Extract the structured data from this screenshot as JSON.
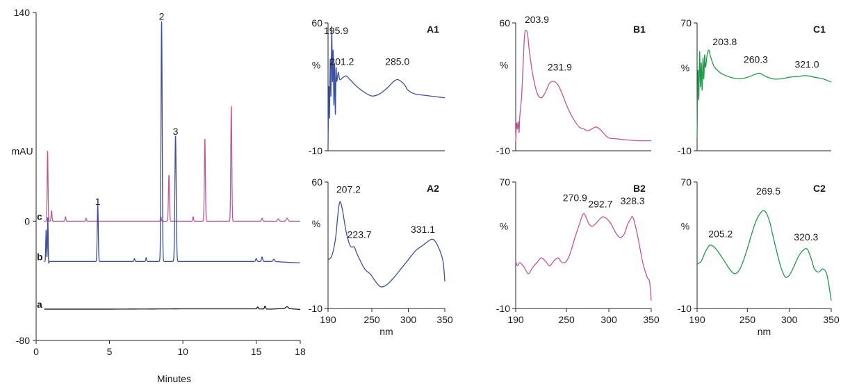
{
  "chart_data": [
    {
      "id": "chromatogram",
      "type": "line",
      "ylabel": "mAU",
      "xlabel": "Minutes",
      "xlim": [
        0,
        18
      ],
      "ylim": [
        -80,
        140
      ],
      "x_ticks": [
        0,
        5,
        10,
        15,
        18
      ],
      "y_ticks": [
        -80,
        0,
        140
      ],
      "series": [
        {
          "name": "c",
          "color": "#c0559c",
          "baseline": 0,
          "points": [
            [
              0.55,
              0
            ],
            [
              0.8,
              0
            ],
            [
              1.05,
              0
            ],
            [
              2.0,
              0
            ],
            [
              3.4,
              0
            ],
            [
              6.0,
              0
            ],
            [
              7.5,
              0
            ],
            [
              9.5,
              0
            ],
            [
              12.0,
              0
            ],
            [
              15.0,
              0
            ],
            [
              17.0,
              0
            ],
            [
              18.0,
              0
            ]
          ],
          "peaks": [
            {
              "x": 0.78,
              "h": 47,
              "w": 0.03
            },
            {
              "x": 1.05,
              "h": 7,
              "w": 0.03
            },
            {
              "x": 2.0,
              "h": 3,
              "w": 0.03
            },
            {
              "x": 3.4,
              "h": 2,
              "w": 0.03
            },
            {
              "x": 8.5,
              "h": 3,
              "w": 0.03
            },
            {
              "x": 9.05,
              "h": 31,
              "w": 0.035
            },
            {
              "x": 10.7,
              "h": 3,
              "w": 0.03
            },
            {
              "x": 11.5,
              "h": 55,
              "w": 0.035
            },
            {
              "x": 13.3,
              "h": 77,
              "w": 0.035
            },
            {
              "x": 15.4,
              "h": 2,
              "w": 0.04
            },
            {
              "x": 16.5,
              "h": 1.5,
              "w": 0.05
            },
            {
              "x": 17.1,
              "h": 2,
              "w": 0.06
            }
          ]
        },
        {
          "name": "b",
          "color": "#3b4fa0",
          "baseline": -27,
          "points": [
            [
              0.55,
              -27
            ],
            [
              0.7,
              -27
            ],
            [
              0.8,
              -27
            ],
            [
              1.0,
              -27
            ],
            [
              4.0,
              -27
            ],
            [
              6.7,
              -27
            ],
            [
              7.5,
              -27
            ],
            [
              9.0,
              -27
            ],
            [
              12.0,
              -27
            ],
            [
              15.0,
              -27
            ],
            [
              16.2,
              -27
            ],
            [
              17.0,
              -27.5
            ],
            [
              18.0,
              -28
            ]
          ],
          "dips": [
            {
              "x": 0.82,
              "h": 7,
              "w": 0.03
            }
          ],
          "peaks": [
            {
              "x": 0.68,
              "h": 21,
              "w": 0.025
            },
            {
              "x": 0.8,
              "h": 35,
              "w": 0.025
            },
            {
              "x": 4.2,
              "h": 38,
              "w": 0.035
            },
            {
              "x": 6.7,
              "h": 2,
              "w": 0.03
            },
            {
              "x": 7.5,
              "h": 2.5,
              "w": 0.03
            },
            {
              "x": 8.55,
              "h": 161,
              "w": 0.04
            },
            {
              "x": 9.5,
              "h": 84,
              "w": 0.045
            },
            {
              "x": 15.0,
              "h": 2,
              "w": 0.04
            },
            {
              "x": 15.4,
              "h": 3,
              "w": 0.04
            },
            {
              "x": 16.2,
              "h": 1.5,
              "w": 0.05
            }
          ]
        },
        {
          "name": "a",
          "color": "#111111",
          "baseline": -59,
          "points": [
            [
              0.55,
              -59
            ],
            [
              5.0,
              -59
            ],
            [
              10.0,
              -58.8
            ],
            [
              15.0,
              -58.8
            ],
            [
              16.0,
              -59
            ],
            [
              17.0,
              -58.5
            ],
            [
              18.0,
              -59.2
            ]
          ],
          "peaks": [
            {
              "x": 15.1,
              "h": 1.3,
              "w": 0.04
            },
            {
              "x": 15.6,
              "h": 2,
              "w": 0.04
            },
            {
              "x": 17.1,
              "h": 1.2,
              "w": 0.08
            }
          ]
        }
      ],
      "annotations": [
        {
          "text": "1",
          "x": 4.2,
          "y": 11
        },
        {
          "text": "2",
          "x": 8.55,
          "y": 135
        },
        {
          "text": "3",
          "x": 9.5,
          "y": 58
        }
      ]
    },
    {
      "id": "A1",
      "type": "line",
      "panel_label": "A1",
      "xlabel": "",
      "ylabel": "%",
      "xlim": [
        190,
        350
      ],
      "ylim": [
        -10,
        60
      ],
      "x_ticks": [],
      "y_ticks": [
        -10,
        60
      ],
      "color": "#3b4fa0",
      "points": [
        [
          190,
          -8
        ],
        [
          191,
          25
        ],
        [
          192,
          8
        ],
        [
          193,
          40
        ],
        [
          194,
          20
        ],
        [
          195,
          58
        ],
        [
          196,
          28
        ],
        [
          197,
          45
        ],
        [
          198,
          15
        ],
        [
          199,
          38
        ],
        [
          200,
          10
        ],
        [
          201,
          35
        ],
        [
          202,
          28
        ],
        [
          204,
          33
        ],
        [
          206,
          29
        ],
        [
          210,
          30
        ],
        [
          215,
          31
        ],
        [
          220,
          29
        ],
        [
          230,
          25
        ],
        [
          240,
          22
        ],
        [
          250,
          20
        ],
        [
          260,
          21
        ],
        [
          270,
          24
        ],
        [
          280,
          28
        ],
        [
          285,
          29
        ],
        [
          290,
          28
        ],
        [
          295,
          26
        ],
        [
          300,
          23
        ],
        [
          310,
          21
        ],
        [
          320,
          20.5
        ],
        [
          330,
          20
        ],
        [
          340,
          19.5
        ],
        [
          350,
          19
        ]
      ],
      "peak_labels": [
        {
          "text": "195.9",
          "x": 201,
          "y": 54
        },
        {
          "text": "201.2",
          "x": 209,
          "y": 37
        },
        {
          "text": "285.0",
          "x": 285,
          "y": 37
        }
      ]
    },
    {
      "id": "B1",
      "type": "line",
      "panel_label": "B1",
      "xlabel": "",
      "ylabel": "%",
      "xlim": [
        190,
        350
      ],
      "ylim": [
        -10,
        60
      ],
      "x_ticks": [],
      "y_ticks": [
        -10,
        60
      ],
      "color": "#c0559c",
      "points": [
        [
          190,
          -5
        ],
        [
          191,
          5
        ],
        [
          192,
          2
        ],
        [
          193,
          6
        ],
        [
          194,
          0
        ],
        [
          195,
          10
        ],
        [
          197,
          20
        ],
        [
          199,
          40
        ],
        [
          200,
          50
        ],
        [
          201,
          55
        ],
        [
          202,
          56
        ],
        [
          204,
          54
        ],
        [
          206,
          45
        ],
        [
          210,
          32
        ],
        [
          215,
          22
        ],
        [
          220,
          19
        ],
        [
          225,
          22
        ],
        [
          230,
          27
        ],
        [
          235,
          28
        ],
        [
          240,
          26
        ],
        [
          245,
          21
        ],
        [
          250,
          15
        ],
        [
          255,
          10
        ],
        [
          260,
          6
        ],
        [
          265,
          3
        ],
        [
          270,
          2
        ],
        [
          275,
          1
        ],
        [
          280,
          2
        ],
        [
          285,
          3
        ],
        [
          290,
          1.5
        ],
        [
          295,
          -1
        ],
        [
          300,
          -3
        ],
        [
          310,
          -3.5
        ],
        [
          320,
          -4
        ],
        [
          335,
          -4.5
        ],
        [
          350,
          -4.5
        ]
      ],
      "peak_labels": [
        {
          "text": "203.9",
          "x": 215,
          "y": 60
        },
        {
          "text": "231.9",
          "x": 242,
          "y": 34
        }
      ]
    },
    {
      "id": "C1",
      "type": "line",
      "panel_label": "C1",
      "xlabel": "",
      "ylabel": "%",
      "xlim": [
        190,
        350
      ],
      "ylim": [
        -10,
        70
      ],
      "x_ticks": [],
      "y_ticks": [
        -10,
        70
      ],
      "color": "#1f9a4a",
      "points": [
        [
          190,
          -2
        ],
        [
          191,
          40
        ],
        [
          192,
          22
        ],
        [
          193,
          52
        ],
        [
          194,
          30
        ],
        [
          195,
          45
        ],
        [
          196,
          28
        ],
        [
          197,
          48
        ],
        [
          198,
          35
        ],
        [
          199,
          50
        ],
        [
          200,
          42
        ],
        [
          202,
          50
        ],
        [
          204,
          53
        ],
        [
          206,
          49
        ],
        [
          210,
          43
        ],
        [
          215,
          40
        ],
        [
          220,
          38
        ],
        [
          230,
          36
        ],
        [
          240,
          35
        ],
        [
          250,
          36
        ],
        [
          260,
          38
        ],
        [
          265,
          38.5
        ],
        [
          270,
          37
        ],
        [
          280,
          35
        ],
        [
          290,
          35
        ],
        [
          300,
          36
        ],
        [
          310,
          36.5
        ],
        [
          320,
          37
        ],
        [
          330,
          36
        ],
        [
          340,
          35
        ],
        [
          350,
          33
        ]
      ],
      "peak_labels": [
        {
          "text": "203.8",
          "x": 223,
          "y": 56
        },
        {
          "text": "260.3",
          "x": 260,
          "y": 45
        },
        {
          "text": "321.0",
          "x": 321,
          "y": 42
        }
      ]
    },
    {
      "id": "A2",
      "type": "line",
      "panel_label": "A2",
      "xlabel": "nm",
      "ylabel": "%",
      "xlim": [
        190,
        350
      ],
      "ylim": [
        -10,
        60
      ],
      "x_ticks": [
        190,
        250,
        300,
        350
      ],
      "y_ticks": [
        -10,
        60
      ],
      "color": "#3b4fa0",
      "points": [
        [
          190,
          17
        ],
        [
          195,
          19
        ],
        [
          200,
          28
        ],
        [
          203,
          40
        ],
        [
          205,
          47
        ],
        [
          207,
          49
        ],
        [
          210,
          44
        ],
        [
          215,
          32
        ],
        [
          220,
          25
        ],
        [
          223,
          24
        ],
        [
          226,
          24
        ],
        [
          230,
          20
        ],
        [
          240,
          12
        ],
        [
          248,
          9
        ],
        [
          255,
          5
        ],
        [
          262,
          2
        ],
        [
          270,
          3
        ],
        [
          280,
          7
        ],
        [
          290,
          12
        ],
        [
          300,
          17
        ],
        [
          310,
          22
        ],
        [
          320,
          25
        ],
        [
          330,
          28
        ],
        [
          335,
          28
        ],
        [
          340,
          25
        ],
        [
          345,
          20
        ],
        [
          348,
          15
        ],
        [
          350,
          5
        ]
      ],
      "peak_labels": [
        {
          "text": "207.2",
          "x": 218,
          "y": 54
        },
        {
          "text": "223.7",
          "x": 233,
          "y": 29
        },
        {
          "text": "331.1",
          "x": 320,
          "y": 32
        }
      ]
    },
    {
      "id": "B2",
      "type": "line",
      "panel_label": "B2",
      "xlabel": "",
      "ylabel": "%",
      "xlim": [
        190,
        350
      ],
      "ylim": [
        -10,
        70
      ],
      "x_ticks": [
        190,
        250,
        300,
        350
      ],
      "y_ticks": [
        -10,
        70
      ],
      "color": "#c0559c",
      "points": [
        [
          190,
          20
        ],
        [
          192,
          17
        ],
        [
          195,
          19
        ],
        [
          200,
          16
        ],
        [
          205,
          12
        ],
        [
          210,
          16
        ],
        [
          215,
          19
        ],
        [
          220,
          22
        ],
        [
          225,
          20
        ],
        [
          230,
          17
        ],
        [
          235,
          20
        ],
        [
          240,
          22
        ],
        [
          245,
          19
        ],
        [
          250,
          20
        ],
        [
          255,
          26
        ],
        [
          260,
          35
        ],
        [
          265,
          43
        ],
        [
          268,
          48
        ],
        [
          270,
          50
        ],
        [
          272,
          49
        ],
        [
          276,
          44
        ],
        [
          280,
          42
        ],
        [
          285,
          44
        ],
        [
          290,
          47
        ],
        [
          293,
          48
        ],
        [
          297,
          47
        ],
        [
          302,
          44
        ],
        [
          308,
          38
        ],
        [
          313,
          35
        ],
        [
          318,
          37
        ],
        [
          322,
          43
        ],
        [
          326,
          47
        ],
        [
          328,
          48
        ],
        [
          331,
          43
        ],
        [
          335,
          33
        ],
        [
          340,
          19
        ],
        [
          345,
          10
        ],
        [
          348,
          7
        ],
        [
          350,
          -5
        ]
      ],
      "peak_labels": [
        {
          "text": "270.9",
          "x": 260,
          "y": 58
        },
        {
          "text": "292.7",
          "x": 290,
          "y": 54
        },
        {
          "text": "328.3",
          "x": 328,
          "y": 56
        }
      ]
    },
    {
      "id": "C2",
      "type": "line",
      "panel_label": "C2",
      "xlabel": "nm",
      "ylabel": "%",
      "xlim": [
        190,
        350
      ],
      "ylim": [
        -10,
        70
      ],
      "x_ticks": [
        190,
        250,
        300,
        350
      ],
      "y_ticks": [
        -10,
        70
      ],
      "color": "#1f9a4a",
      "points": [
        [
          190,
          18
        ],
        [
          195,
          20
        ],
        [
          200,
          26
        ],
        [
          205,
          30
        ],
        [
          210,
          29
        ],
        [
          215,
          26
        ],
        [
          220,
          22
        ],
        [
          225,
          18
        ],
        [
          230,
          14
        ],
        [
          235,
          12
        ],
        [
          240,
          14
        ],
        [
          245,
          20
        ],
        [
          250,
          28
        ],
        [
          255,
          37
        ],
        [
          260,
          45
        ],
        [
          265,
          50
        ],
        [
          269,
          52
        ],
        [
          273,
          50
        ],
        [
          277,
          44
        ],
        [
          280,
          37
        ],
        [
          285,
          26
        ],
        [
          290,
          16
        ],
        [
          295,
          10
        ],
        [
          300,
          11
        ],
        [
          305,
          16
        ],
        [
          310,
          22
        ],
        [
          315,
          26
        ],
        [
          320,
          28
        ],
        [
          323,
          26
        ],
        [
          327,
          20
        ],
        [
          330,
          15
        ],
        [
          335,
          13
        ],
        [
          340,
          15
        ],
        [
          345,
          11
        ],
        [
          350,
          -5
        ]
      ],
      "peak_labels": [
        {
          "text": "205.2",
          "x": 218,
          "y": 35
        },
        {
          "text": "269.5",
          "x": 275,
          "y": 62
        },
        {
          "text": "320.3",
          "x": 320,
          "y": 33
        }
      ]
    }
  ]
}
